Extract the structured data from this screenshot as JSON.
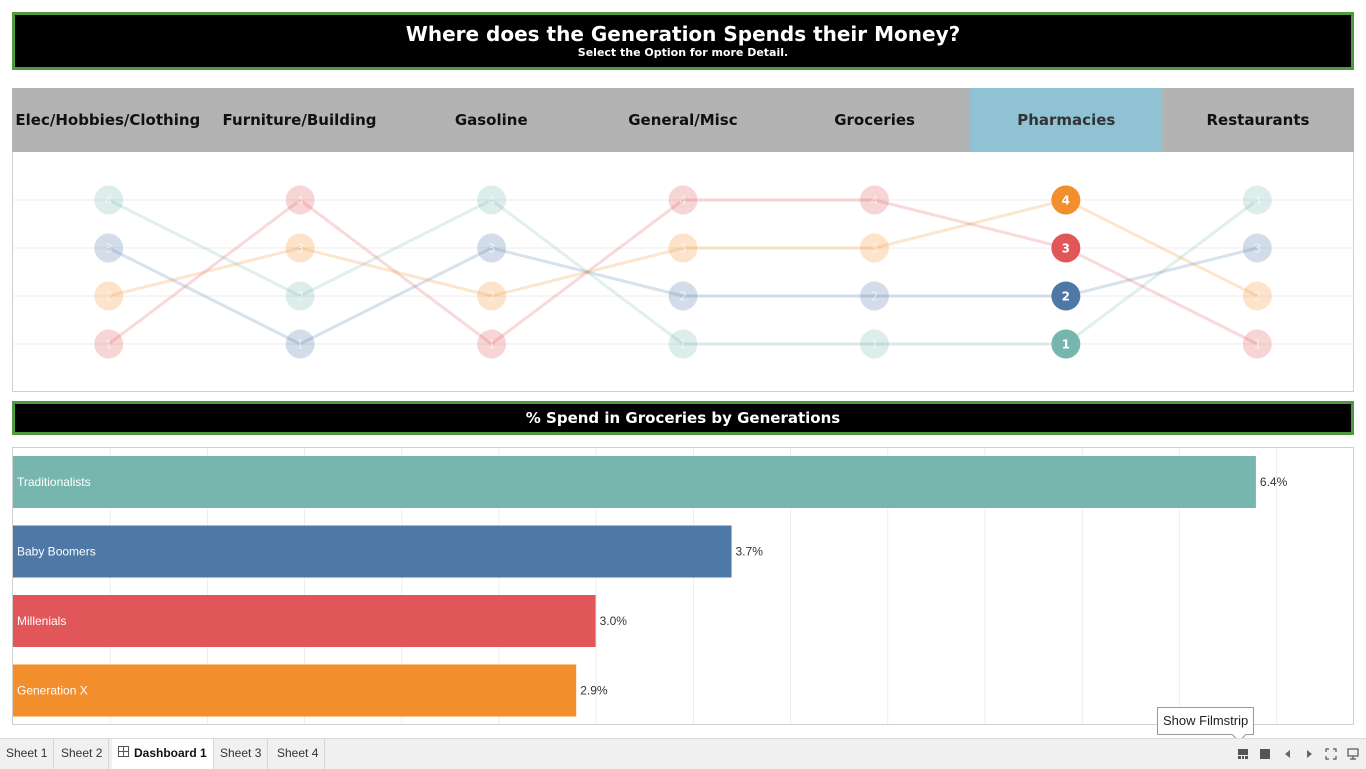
{
  "title": {
    "main": "Where does the Generation Spends their Money?",
    "sub": "Select the Option for more Detail."
  },
  "categories": [
    "Elec/Hobbies/Clothing",
    "Furniture/Building",
    "Gasoline",
    "General/Misc",
    "Groceries",
    "Pharmacies",
    "Restaurants"
  ],
  "selected_category": "Pharmacies",
  "colors": {
    "Traditionalists": "#76b6af",
    "Baby Boomers": "#4e79a7",
    "Millenials": "#e15759",
    "Generation X": "#f28e2b",
    "banner_border": "#4f9a3f",
    "selected_tab": "#8fc3d4"
  },
  "chart_data": [
    {
      "type": "line",
      "subtype": "bump",
      "categories": [
        "Elec/Hobbies/Clothing",
        "Furniture/Building",
        "Gasoline",
        "General/Misc",
        "Groceries",
        "Pharmacies",
        "Restaurants"
      ],
      "ylim": [
        1,
        4
      ],
      "series": [
        {
          "name": "Traditionalists",
          "values": [
            4,
            2,
            4,
            1,
            1,
            1,
            4
          ]
        },
        {
          "name": "Baby Boomers",
          "values": [
            3,
            1,
            3,
            2,
            2,
            2,
            3
          ]
        },
        {
          "name": "Generation X",
          "values": [
            2,
            3,
            2,
            3,
            3,
            4,
            2
          ]
        },
        {
          "name": "Millenials",
          "values": [
            1,
            4,
            1,
            4,
            4,
            3,
            1
          ]
        }
      ],
      "highlighted": "Pharmacies"
    },
    {
      "type": "bar",
      "orientation": "horizontal",
      "title": "%  Spend in Groceries by Generations",
      "categories": [
        "Traditionalists",
        "Baby Boomers",
        "Millenials",
        "Generation X"
      ],
      "values": [
        6.4,
        3.7,
        3.0,
        2.9
      ],
      "labels": [
        "6.4%",
        "3.7%",
        "3.0%",
        "2.9%"
      ],
      "xlim": [
        0,
        6.9
      ],
      "grid": true
    }
  ],
  "sheet_tabs": [
    "Sheet 1",
    "Sheet 2",
    "Dashboard 1",
    "Sheet 3",
    "Sheet 4"
  ],
  "active_tab": "Dashboard 1",
  "tooltip": "Show Filmstrip",
  "controls": {
    "filmstrip_icon": "filmstrip-icon",
    "grid_icon": "grid-icon",
    "prev_icon": "prev-icon",
    "next_icon": "next-icon",
    "fullscreen_icon": "fullscreen-icon",
    "presentation_icon": "presentation-icon"
  }
}
